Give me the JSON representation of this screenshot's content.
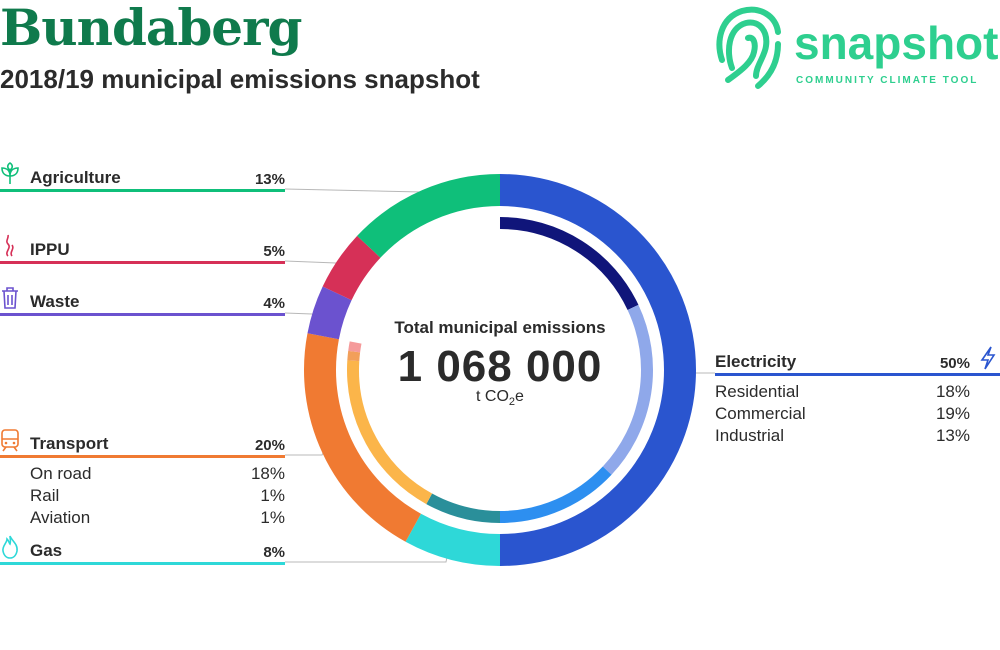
{
  "header": {
    "title": "Bundaberg",
    "subtitle": "2018/19 municipal emissions snapshot"
  },
  "logo": {
    "word": "snapshot",
    "tagline": "COMMUNITY CLIMATE TOOL",
    "color": "#2ecf8f"
  },
  "center": {
    "label": "Total municipal emissions",
    "value": "1 068 000",
    "unit_prefix": "t CO",
    "unit_sub": "2",
    "unit_suffix": "e"
  },
  "chart_data": {
    "type": "pie",
    "title": "2018/19 municipal emissions snapshot",
    "total": 1068000,
    "series": [
      {
        "name": "Electricity",
        "percent": 50,
        "color": "#2a55cf",
        "subs": [
          {
            "name": "Residential",
            "percent": 18,
            "color": "#10157a"
          },
          {
            "name": "Commercial",
            "percent": 19,
            "color": "#8fa8ea"
          },
          {
            "name": "Industrial",
            "percent": 13,
            "color": "#2d8ff0"
          }
        ]
      },
      {
        "name": "Gas",
        "percent": 8,
        "color": "#2ed8d8",
        "subs": [
          {
            "name": "Gas",
            "percent": 8,
            "color": "#2a8f9a"
          }
        ]
      },
      {
        "name": "Transport",
        "percent": 20,
        "color": "#f07a32",
        "subs": [
          {
            "name": "On road",
            "percent": 18,
            "color": "#fbb54a"
          },
          {
            "name": "Rail",
            "percent": 1,
            "color": "#f29f5a"
          },
          {
            "name": "Aviation",
            "percent": 1,
            "color": "#f59a9a"
          }
        ]
      },
      {
        "name": "Waste",
        "percent": 4,
        "color": "#6b52cf",
        "subs": []
      },
      {
        "name": "IPPU",
        "percent": 5,
        "color": "#d63057",
        "subs": []
      },
      {
        "name": "Agriculture",
        "percent": 13,
        "color": "#0fbf7a",
        "subs": []
      }
    ]
  },
  "legend": {
    "agriculture": {
      "label": "Agriculture",
      "pct": "13%"
    },
    "ippu": {
      "label": "IPPU",
      "pct": "5%"
    },
    "waste": {
      "label": "Waste",
      "pct": "4%"
    },
    "transport": {
      "label": "Transport",
      "pct": "20%",
      "subs": [
        {
          "label": "On road",
          "pct": "18%"
        },
        {
          "label": "Rail",
          "pct": "1%"
        },
        {
          "label": "Aviation",
          "pct": "1%"
        }
      ]
    },
    "gas": {
      "label": "Gas",
      "pct": "8%"
    },
    "electricity": {
      "label": "Electricity",
      "pct": "50%",
      "subs": [
        {
          "label": "Residential",
          "pct": "18%"
        },
        {
          "label": "Commercial",
          "pct": "19%"
        },
        {
          "label": "Industrial",
          "pct": "13%"
        }
      ]
    }
  }
}
